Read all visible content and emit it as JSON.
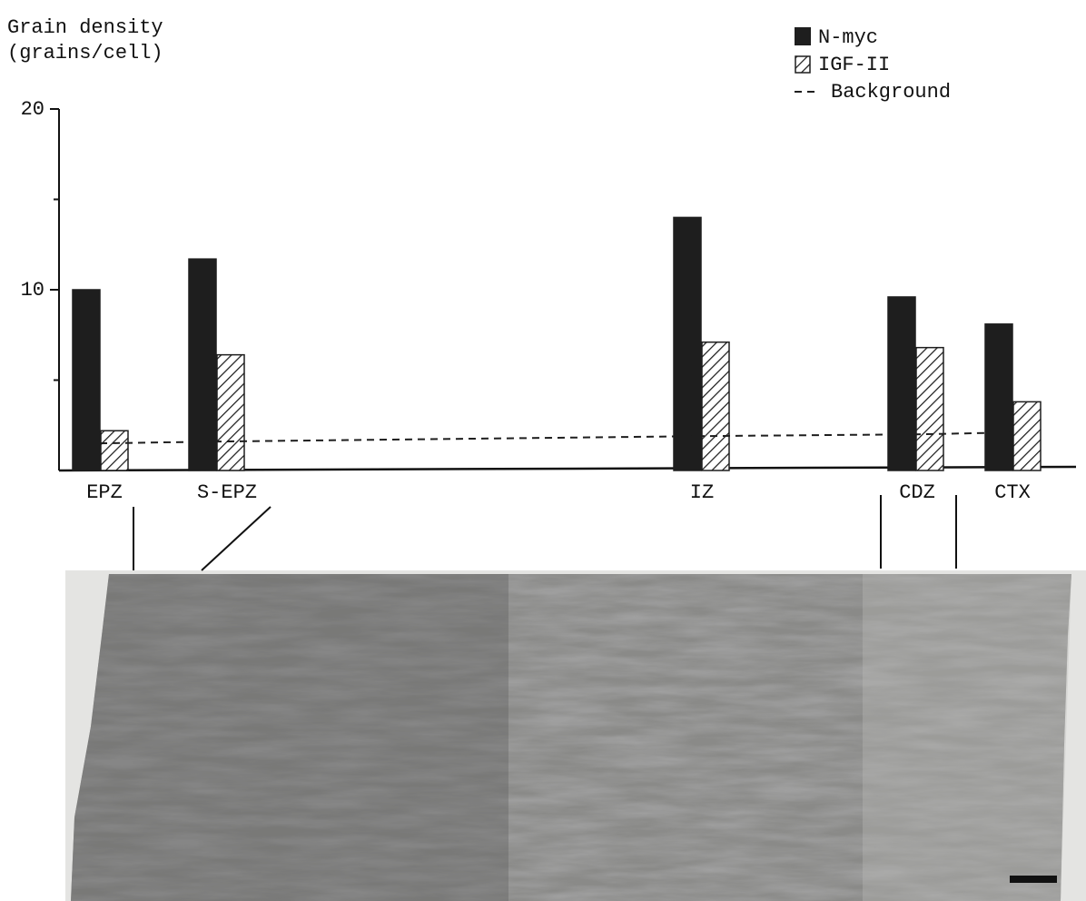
{
  "chart_data": {
    "type": "bar",
    "ylabel": [
      "Grain density",
      "(grains/cell)"
    ],
    "categories": [
      "EPZ",
      "S-EPZ",
      "IZ",
      "CDZ",
      "CTX"
    ],
    "series": [
      {
        "name": "N-myc",
        "color": "#1e1e1e",
        "values": [
          10.0,
          11.7,
          14.0,
          9.6,
          8.1
        ]
      },
      {
        "name": "IGF-II",
        "color": "#1e1e1e",
        "values": [
          2.2,
          6.4,
          7.1,
          6.8,
          3.8
        ]
      },
      {
        "name": "Background",
        "color": "#1e1e1e",
        "values": [
          1.5,
          1.6,
          1.9,
          2.0,
          2.1
        ]
      }
    ],
    "ylim": [
      0,
      20
    ],
    "yticks": [
      10,
      20
    ],
    "yminorticks": [
      5,
      15
    ]
  }
}
